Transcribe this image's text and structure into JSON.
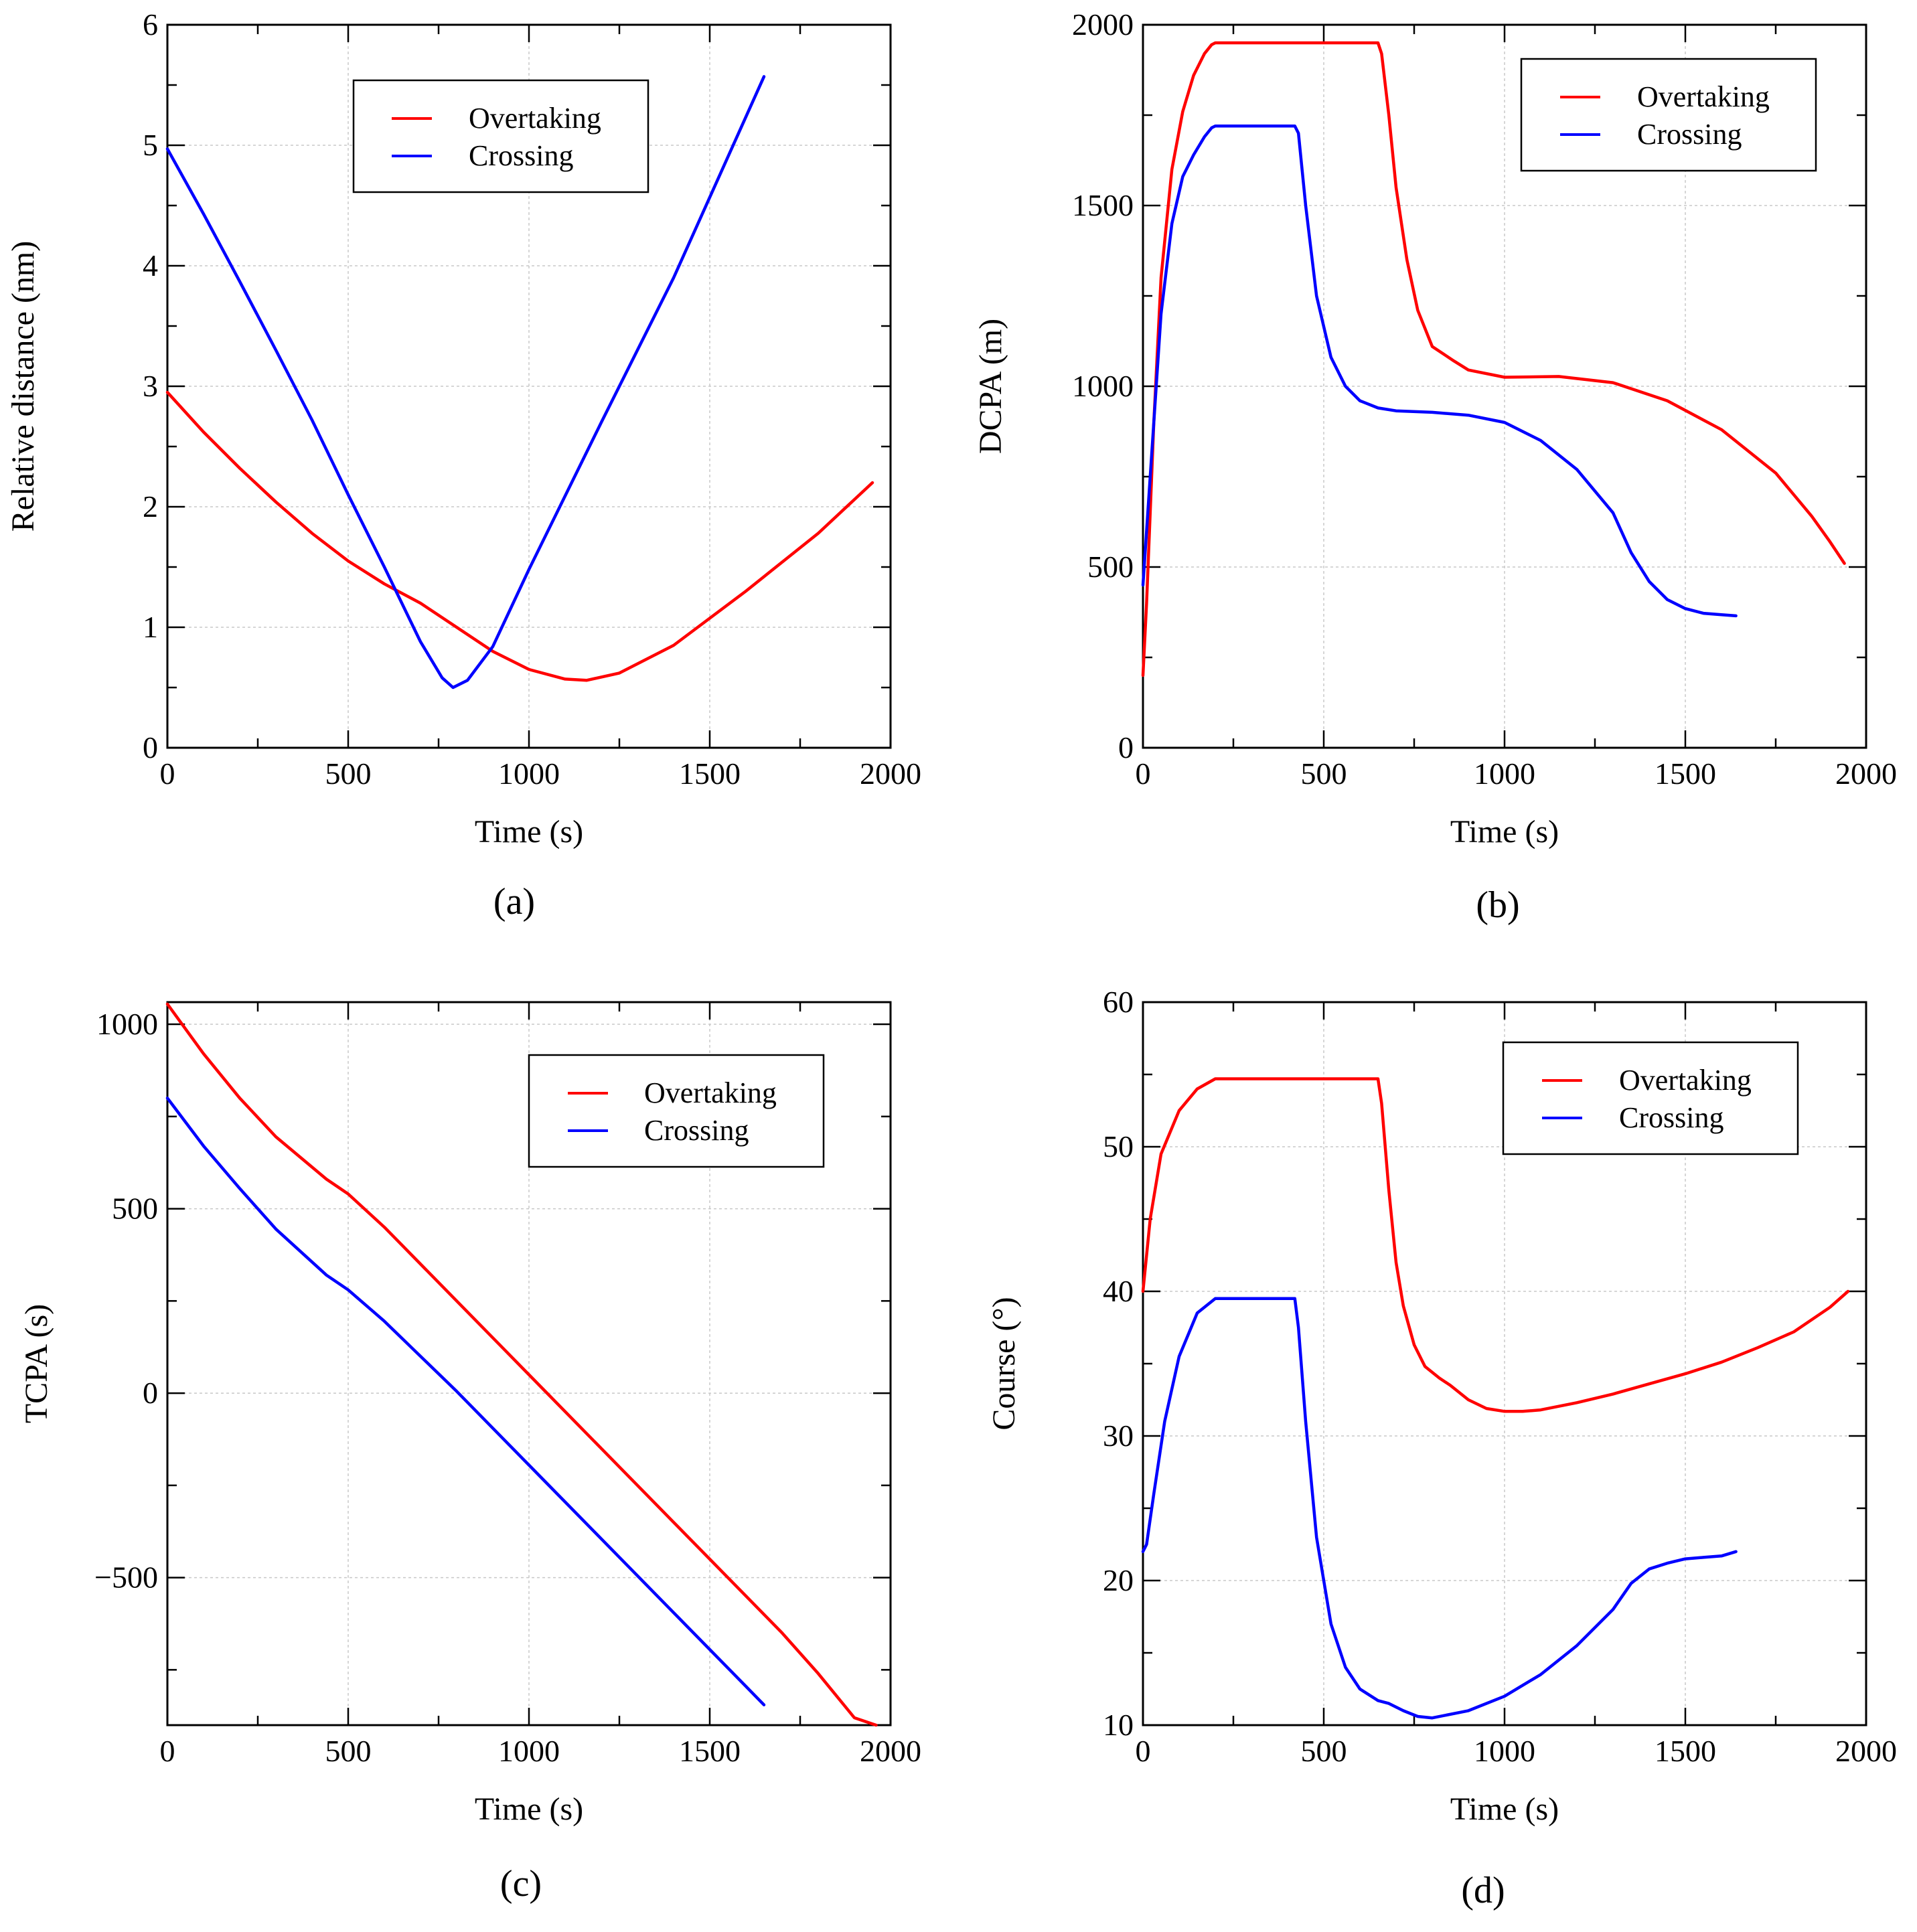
{
  "figure": {
    "panels": [
      "a",
      "b",
      "c",
      "d"
    ]
  },
  "colors": {
    "overtaking": "#ff0000",
    "crossing": "#0000ff",
    "grid": "#c8c8c8",
    "axis": "#000000"
  },
  "chart_data": [
    {
      "type": "line",
      "caption": "(a)",
      "title": "",
      "xlabel": "Time (s)",
      "ylabel": "Relative distance (nm)",
      "xlim": [
        0,
        2000
      ],
      "ylim": [
        0,
        6
      ],
      "xticks": [
        0,
        500,
        1000,
        1500,
        2000
      ],
      "xtick_labels": [
        "0",
        "500",
        "1000",
        "1500",
        "2000"
      ],
      "yticks": [
        0,
        1,
        2,
        3,
        4,
        5,
        6
      ],
      "ytick_labels": [
        "0",
        "1",
        "2",
        "3",
        "4",
        "5",
        "6"
      ],
      "grid": true,
      "legend_position": "top-center",
      "series": [
        {
          "name": "Overtaking",
          "color": "#ff0000",
          "x": [
            0,
            100,
            200,
            300,
            400,
            500,
            600,
            700,
            800,
            900,
            1000,
            1100,
            1160,
            1250,
            1400,
            1600,
            1800,
            1950
          ],
          "y": [
            2.95,
            2.62,
            2.32,
            2.04,
            1.78,
            1.55,
            1.36,
            1.2,
            1.0,
            0.8,
            0.65,
            0.57,
            0.56,
            0.62,
            0.85,
            1.3,
            1.78,
            2.2
          ]
        },
        {
          "name": "Crossing",
          "color": "#0000ff",
          "x": [
            0,
            100,
            200,
            300,
            400,
            500,
            600,
            700,
            760,
            790,
            830,
            900,
            1000,
            1200,
            1400,
            1650
          ],
          "y": [
            4.97,
            4.43,
            3.87,
            3.3,
            2.72,
            2.1,
            1.5,
            0.88,
            0.58,
            0.5,
            0.56,
            0.84,
            1.48,
            2.7,
            3.9,
            5.57
          ]
        }
      ]
    },
    {
      "type": "line",
      "caption": "(b)",
      "title": "",
      "xlabel": "Time (s)",
      "ylabel": "DCPA (m)",
      "xlim": [
        0,
        2000
      ],
      "ylim": [
        0,
        2000
      ],
      "xticks": [
        0,
        500,
        1000,
        1500,
        2000
      ],
      "xtick_labels": [
        "0",
        "500",
        "1000",
        "1500",
        "2000"
      ],
      "yticks": [
        0,
        500,
        1000,
        1500,
        2000
      ],
      "ytick_labels": [
        "0",
        "500",
        "1000",
        "1500",
        "2000"
      ],
      "grid": true,
      "legend_position": "top-right",
      "series": [
        {
          "name": "Overtaking",
          "color": "#ff0000",
          "x": [
            0,
            10,
            30,
            50,
            80,
            110,
            140,
            170,
            190,
            200,
            400,
            650,
            660,
            680,
            700,
            730,
            760,
            800,
            830,
            860,
            900,
            1000,
            1150,
            1300,
            1450,
            1600,
            1750,
            1850,
            1900,
            1940
          ],
          "y": [
            200,
            400,
            900,
            1300,
            1600,
            1760,
            1860,
            1920,
            1945,
            1950,
            1950,
            1950,
            1920,
            1750,
            1550,
            1350,
            1210,
            1110,
            1090,
            1070,
            1045,
            1025,
            1027,
            1010,
            960,
            880,
            760,
            640,
            570,
            510
          ]
        },
        {
          "name": "Crossing",
          "color": "#0000ff",
          "x": [
            0,
            10,
            30,
            50,
            80,
            110,
            140,
            170,
            190,
            200,
            420,
            430,
            450,
            480,
            520,
            560,
            600,
            650,
            700,
            800,
            900,
            1000,
            1100,
            1200,
            1300,
            1350,
            1400,
            1450,
            1500,
            1550,
            1600,
            1640
          ],
          "y": [
            450,
            600,
            900,
            1200,
            1450,
            1580,
            1640,
            1690,
            1715,
            1720,
            1720,
            1700,
            1500,
            1250,
            1080,
            1000,
            960,
            940,
            932,
            928,
            920,
            900,
            850,
            770,
            650,
            540,
            460,
            410,
            385,
            372,
            368,
            365
          ]
        }
      ]
    },
    {
      "type": "line",
      "caption": "(c)",
      "title": "",
      "xlabel": "Time (s)",
      "ylabel": "TCPA (s)",
      "xlim": [
        0,
        2000
      ],
      "ylim": [
        -900,
        1060
      ],
      "xticks": [
        0,
        500,
        1000,
        1500,
        2000
      ],
      "xtick_labels": [
        "0",
        "500",
        "1000",
        "1500",
        "2000"
      ],
      "yticks": [
        -500,
        0,
        500,
        1000
      ],
      "ytick_labels": [
        "−500",
        "0",
        "500",
        "1000"
      ],
      "grid": true,
      "legend_position": "top-right",
      "series": [
        {
          "name": "Overtaking",
          "color": "#ff0000",
          "x": [
            0,
            100,
            200,
            300,
            440,
            500,
            600,
            800,
            1000,
            1200,
            1400,
            1600,
            1700,
            1800,
            1900,
            1960
          ],
          "y": [
            1055,
            920,
            800,
            695,
            580,
            540,
            450,
            250,
            50,
            -150,
            -350,
            -550,
            -650,
            -760,
            -880,
            -900
          ]
        },
        {
          "name": "Crossing",
          "color": "#0000ff",
          "x": [
            0,
            100,
            200,
            300,
            440,
            500,
            600,
            800,
            1000,
            1200,
            1400,
            1600,
            1650
          ],
          "y": [
            800,
            670,
            555,
            445,
            320,
            280,
            195,
            5,
            -195,
            -395,
            -595,
            -795,
            -845
          ]
        }
      ]
    },
    {
      "type": "line",
      "caption": "(d)",
      "title": "",
      "xlabel": "Time (s)",
      "ylabel": "Course (°)",
      "xlim": [
        0,
        2000
      ],
      "ylim": [
        10,
        60
      ],
      "xticks": [
        0,
        500,
        1000,
        1500,
        2000
      ],
      "xtick_labels": [
        "0",
        "500",
        "1000",
        "1500",
        "2000"
      ],
      "yticks": [
        10,
        20,
        30,
        40,
        50,
        60
      ],
      "ytick_labels": [
        "10",
        "20",
        "30",
        "40",
        "50",
        "60"
      ],
      "grid": true,
      "legend_position": "top-right",
      "series": [
        {
          "name": "Overtaking",
          "color": "#ff0000",
          "x": [
            0,
            20,
            50,
            100,
            150,
            200,
            400,
            650,
            660,
            680,
            700,
            720,
            750,
            780,
            820,
            850,
            900,
            950,
            1000,
            1050,
            1100,
            1200,
            1300,
            1400,
            1500,
            1600,
            1700,
            1800,
            1900,
            1950
          ],
          "y": [
            40,
            45,
            49.5,
            52.5,
            54,
            54.7,
            54.7,
            54.7,
            53,
            47,
            42,
            39,
            36.3,
            34.8,
            34,
            33.5,
            32.5,
            31.9,
            31.7,
            31.7,
            31.8,
            32.3,
            32.9,
            33.6,
            34.3,
            35.1,
            36.1,
            37.2,
            38.9,
            40
          ]
        },
        {
          "name": "Crossing",
          "color": "#0000ff",
          "x": [
            0,
            10,
            30,
            60,
            100,
            150,
            200,
            420,
            430,
            450,
            480,
            520,
            560,
            600,
            650,
            680,
            720,
            760,
            800,
            900,
            1000,
            1100,
            1200,
            1300,
            1350,
            1400,
            1450,
            1500,
            1550,
            1600,
            1640
          ],
          "y": [
            22,
            22.5,
            26,
            31,
            35.5,
            38.5,
            39.5,
            39.5,
            37.5,
            31,
            23,
            17,
            14,
            12.5,
            11.7,
            11.5,
            11,
            10.6,
            10.5,
            11,
            12,
            13.5,
            15.5,
            18,
            19.8,
            20.8,
            21.2,
            21.5,
            21.6,
            21.7,
            22
          ]
        }
      ]
    }
  ]
}
